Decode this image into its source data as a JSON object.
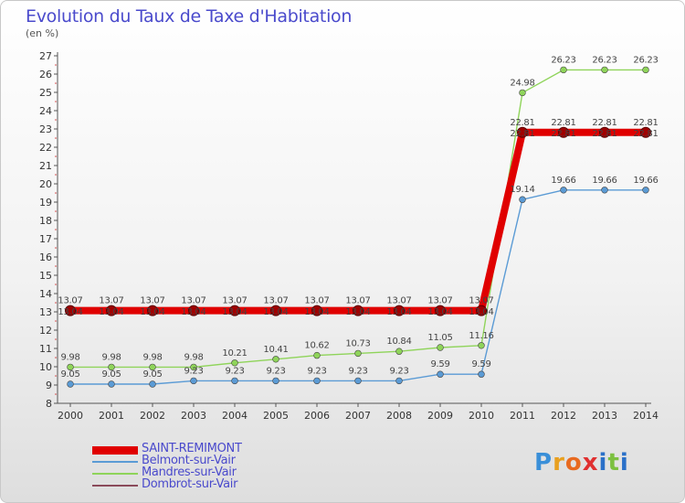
{
  "title": "Evolution du Taux de Taxe d'Habitation",
  "unit": "(en %)",
  "logo": {
    "letters": [
      {
        "ch": "P",
        "color": "#3a8fd8"
      },
      {
        "ch": "r",
        "color": "#e8a020"
      },
      {
        "ch": "o",
        "color": "#e86a20"
      },
      {
        "ch": "x",
        "color": "#e03030"
      },
      {
        "ch": "i",
        "color": "#2a70c8"
      },
      {
        "ch": "t",
        "color": "#7cc040"
      },
      {
        "ch": "i",
        "color": "#2a70c8"
      }
    ]
  },
  "chart_data": {
    "type": "line",
    "title": "Evolution du Taux de Taxe d'Habitation",
    "ylabel": "(en %)",
    "xlabel": "",
    "ylim": [
      8,
      27
    ],
    "yticks": [
      8,
      9,
      10,
      11,
      12,
      13,
      14,
      15,
      16,
      17,
      18,
      19,
      20,
      21,
      22,
      23,
      24,
      25,
      26,
      27
    ],
    "categories": [
      "2000",
      "2001",
      "2002",
      "2003",
      "2004",
      "2005",
      "2006",
      "2007",
      "2008",
      "2009",
      "2010",
      "2011",
      "2012",
      "2013",
      "2014"
    ],
    "grid": false,
    "legend_position": "bottom-left",
    "series": [
      {
        "name": "SAINT-REMIMONT",
        "color": "#e00000",
        "highlight": true,
        "values": [
          13.07,
          13.07,
          13.07,
          13.07,
          13.07,
          13.07,
          13.07,
          13.07,
          13.07,
          13.07,
          13.07,
          22.81,
          22.81,
          22.81,
          22.81
        ],
        "labels": [
          "13.07",
          "13.07",
          "13.07",
          "13.07",
          "13.07",
          "13.07",
          "13.07",
          "13.07",
          "13.07",
          "13.07",
          "13.07",
          "22.81",
          "22.81",
          "22.81",
          "22.81"
        ]
      },
      {
        "name": "Belmont-sur-Vair",
        "color": "#5b9bd5",
        "values": [
          9.05,
          9.05,
          9.05,
          9.23,
          9.23,
          9.23,
          9.23,
          9.23,
          9.23,
          9.59,
          9.59,
          19.14,
          19.66,
          19.66,
          19.66
        ],
        "labels": [
          "9.05",
          "9.05",
          "9.05",
          "9.23",
          "9.23",
          "9.23",
          "9.23",
          "9.23",
          "9.23",
          "9.59",
          "9.59",
          "19.14",
          "19.66",
          "19.66",
          "19.66"
        ]
      },
      {
        "name": "Mandres-sur-Vair",
        "color": "#8fd45a",
        "values": [
          9.98,
          9.98,
          9.98,
          9.98,
          10.21,
          10.41,
          10.62,
          10.73,
          10.84,
          11.05,
          11.16,
          24.98,
          26.23,
          26.23,
          26.23
        ],
        "labels": [
          "9.98",
          "9.98",
          "9.98",
          "9.98",
          "10.21",
          "10.41",
          "10.62",
          "10.73",
          "10.84",
          "11.05",
          "11.16",
          "24.98",
          "26.23",
          "26.23",
          "26.23"
        ]
      },
      {
        "name": "Dombrot-sur-Vair",
        "color": "#8b4a5a",
        "values": [
          13.04,
          13.04,
          13.04,
          13.04,
          13.04,
          13.04,
          13.04,
          13.04,
          13.04,
          13.04,
          13.04,
          22.81,
          22.81,
          22.81,
          22.81
        ],
        "labels": [
          "13.04",
          "13.04",
          "13.04",
          "13.04",
          "13.04",
          "13.04",
          "13.04",
          "13.04",
          "13.04",
          "13.04",
          "13.04",
          "22.81",
          "22.81",
          "22.81",
          "22.81"
        ]
      }
    ]
  }
}
